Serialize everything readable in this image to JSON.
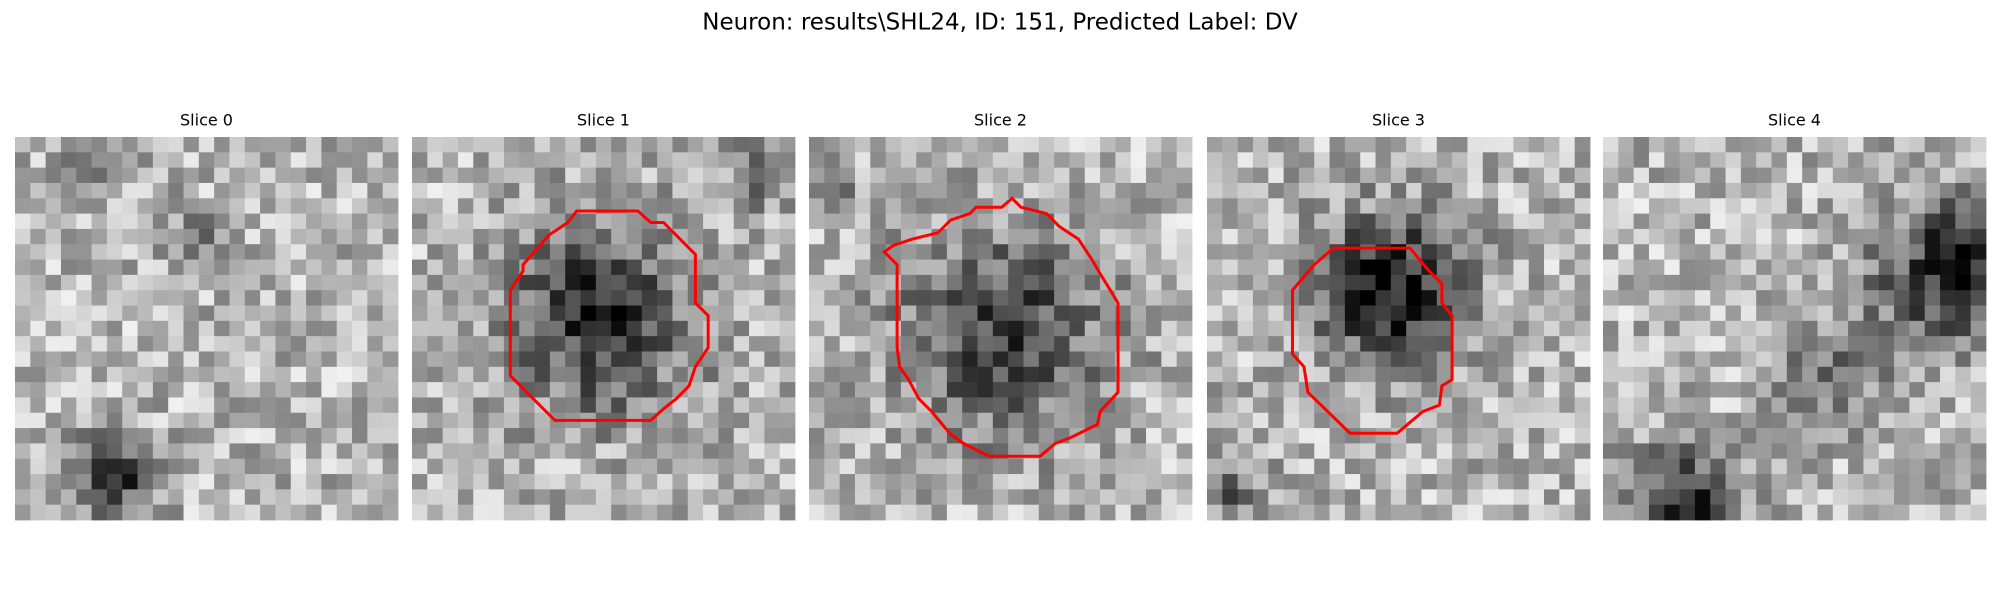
{
  "title": "Neuron: results\\SHL24, ID: 151, Predicted Label: DV",
  "panels": [
    {
      "title": "Slice 0"
    },
    {
      "title": "Slice 1"
    },
    {
      "title": "Slice 2"
    },
    {
      "title": "Slice 3"
    },
    {
      "title": "Slice 4"
    }
  ]
}
